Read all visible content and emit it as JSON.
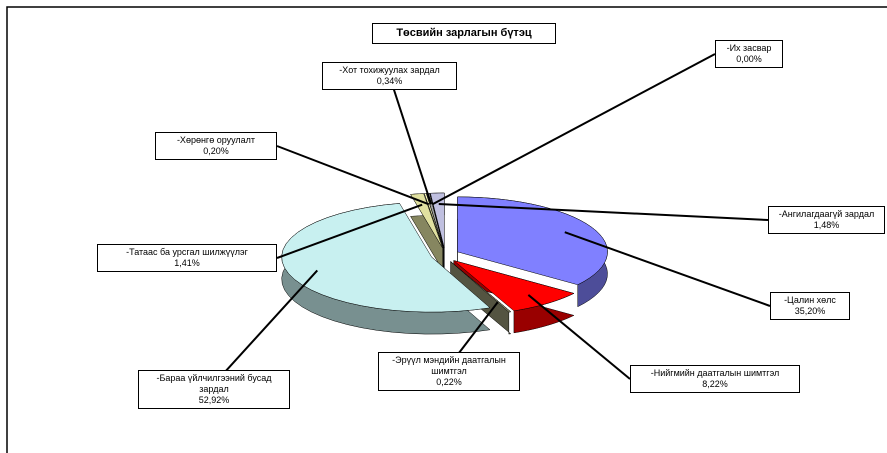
{
  "chart_data": {
    "type": "pie",
    "title": "Төсвийн зарлагын бүтэц",
    "categories": [
      "-Цалин хөлс",
      "-Нийгмийн даатгалын шимтгэл",
      "-Эрүүл мэндийн даатгалын шимтгэл",
      "-Бараа үйлчилгээний бусад зардал",
      "-Татаас ба урсгал шилжүүлэг",
      "-Хөрөнгө оруулалт",
      "-Хот тохижуулах зардал",
      "-Их засвар",
      "-Ангилагдаагүй зардал"
    ],
    "values": [
      35.2,
      8.22,
      0.22,
      52.92,
      1.41,
      0.2,
      0.34,
      0,
      1.48
    ],
    "value_labels": [
      "35,20%",
      "8,22%",
      "0,22%",
      "52,92%",
      "1,41%",
      "0,20%",
      "0,34%",
      "0,00%",
      "1,48%"
    ],
    "colors": [
      "#8080ff",
      "#ff0000",
      "#8c8c6c",
      "#c8f0f0",
      "#e0e0a0",
      "#ffffc0",
      "#a0a0a0",
      "#404080",
      "#c0c0e0"
    ]
  }
}
